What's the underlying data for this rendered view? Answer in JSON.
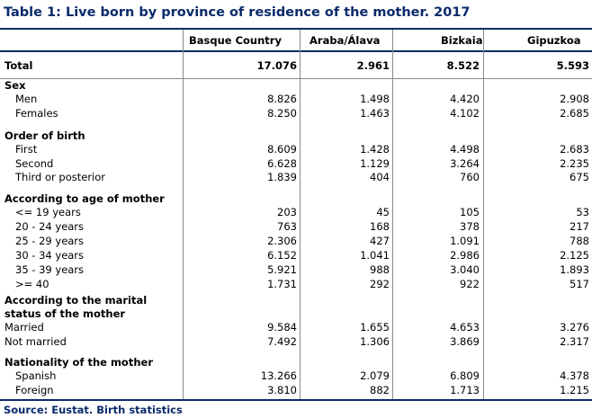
{
  "title": "Table 1: Live born by province of residence of the mother. 2017",
  "columns": [
    "Basque Country",
    "Araba/Álava",
    "Bizkaia",
    "Gipuzkoa"
  ],
  "rows": [
    {
      "label": "Total",
      "kind": "total",
      "values": [
        "17.076",
        "2.961",
        "8.522",
        "5.593"
      ]
    },
    {
      "label": "Sex",
      "kind": "section"
    },
    {
      "label": "Men",
      "kind": "item",
      "values": [
        "8.826",
        "1.498",
        "4.420",
        "2.908"
      ]
    },
    {
      "label": "Females",
      "kind": "item",
      "values": [
        "8.250",
        "1.463",
        "4.102",
        "2.685"
      ]
    },
    {
      "label": "Order of birth",
      "kind": "section"
    },
    {
      "label": "First",
      "kind": "item",
      "values": [
        "8.609",
        "1.428",
        "4.498",
        "2.683"
      ]
    },
    {
      "label": "Second",
      "kind": "item",
      "values": [
        "6.628",
        "1.129",
        "3.264",
        "2.235"
      ]
    },
    {
      "label": "Third or posterior",
      "kind": "item",
      "values": [
        "1.839",
        "404",
        "760",
        "675"
      ]
    },
    {
      "label": "According to age of mother",
      "kind": "section"
    },
    {
      "label": "<= 19 years",
      "kind": "item",
      "values": [
        "203",
        "45",
        "105",
        "53"
      ]
    },
    {
      "label": "20 - 24 years",
      "kind": "item",
      "values": [
        "763",
        "168",
        "378",
        "217"
      ]
    },
    {
      "label": "25 - 29 years",
      "kind": "item",
      "values": [
        "2.306",
        "427",
        "1.091",
        "788"
      ]
    },
    {
      "label": "30 - 34 years",
      "kind": "item",
      "values": [
        "6.152",
        "1.041",
        "2.986",
        "2.125"
      ]
    },
    {
      "label": "35 - 39 years",
      "kind": "item",
      "values": [
        "5.921",
        "988",
        "3.040",
        "1.893"
      ]
    },
    {
      "label": ">= 40",
      "kind": "item",
      "values": [
        "1.731",
        "292",
        "922",
        "517"
      ]
    },
    {
      "label": "According to the marital",
      "kind": "section"
    },
    {
      "label": "status of the mother",
      "kind": "section"
    },
    {
      "label": "Married",
      "kind": "item-flush",
      "values": [
        "9.584",
        "1.655",
        "4.653",
        "3.276"
      ]
    },
    {
      "label": "Not married",
      "kind": "item-flush",
      "values": [
        "7.492",
        "1.306",
        "3.869",
        "2.317"
      ]
    },
    {
      "label": "Nationality of the mother",
      "kind": "section"
    },
    {
      "label": "Spanish",
      "kind": "item",
      "values": [
        "13.266",
        "2.079",
        "6.809",
        "4.378"
      ]
    },
    {
      "label": "Foreign",
      "kind": "item",
      "values": [
        "3.810",
        "882",
        "1.713",
        "1.215"
      ]
    }
  ],
  "source": "Source: Eustat. Birth statistics"
}
